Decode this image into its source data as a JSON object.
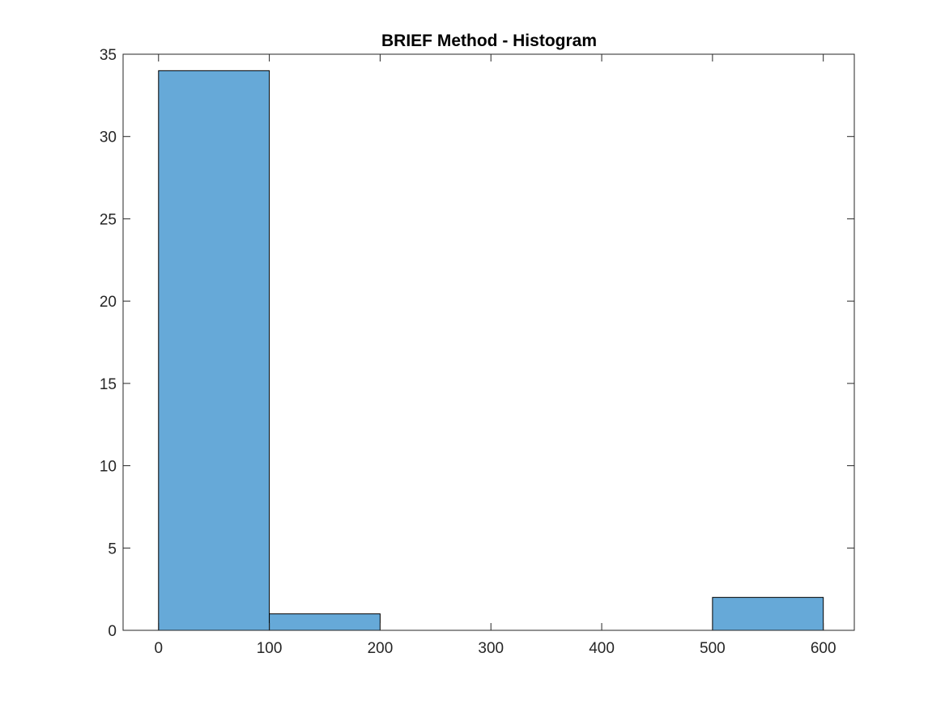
{
  "chart_data": {
    "type": "bar",
    "title": "BRIEF Method - Histogram",
    "xlabel": "",
    "ylabel": "",
    "bins": [
      {
        "start": 0,
        "end": 100,
        "count": 34
      },
      {
        "start": 100,
        "end": 200,
        "count": 1
      },
      {
        "start": 200,
        "end": 300,
        "count": 0
      },
      {
        "start": 300,
        "end": 400,
        "count": 0
      },
      {
        "start": 400,
        "end": 500,
        "count": 0
      },
      {
        "start": 500,
        "end": 600,
        "count": 2
      }
    ],
    "xlim": [
      -32,
      628
    ],
    "ylim": [
      0,
      35
    ],
    "x_ticks": [
      0,
      100,
      200,
      300,
      400,
      500,
      600
    ],
    "x_tick_labels": [
      "0",
      "100",
      "200",
      "300",
      "400",
      "500",
      "600"
    ],
    "y_ticks": [
      0,
      5,
      10,
      15,
      20,
      25,
      30,
      35
    ],
    "y_tick_labels": [
      "0",
      "5",
      "10",
      "15",
      "20",
      "25",
      "30",
      "35"
    ],
    "grid": false,
    "bar_color": "#66A9D8",
    "bar_edge_color": "#000000"
  }
}
